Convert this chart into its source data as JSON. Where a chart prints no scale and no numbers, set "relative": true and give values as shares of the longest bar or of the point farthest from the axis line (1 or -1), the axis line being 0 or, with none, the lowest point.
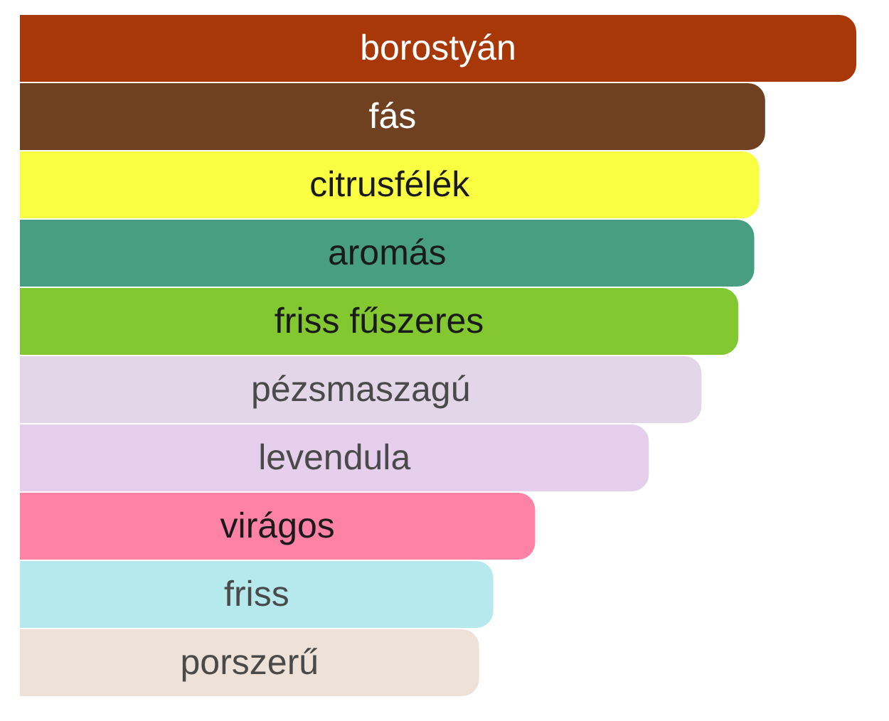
{
  "chart_data": {
    "type": "bar",
    "orientation": "horizontal",
    "relative": true,
    "legend": false,
    "categories": [
      "borostyán",
      "fás",
      "citrusfélék",
      "aromás",
      "friss fűszeres",
      "pézsmaszagú",
      "levendula",
      "virágos",
      "friss",
      "porszerű"
    ],
    "values": [
      1,
      0.891,
      0.884,
      0.878,
      0.859,
      0.815,
      0.752,
      0.616,
      0.566,
      0.549
    ],
    "colors": [
      "#a83808",
      "#6f4120",
      "#f9fe42",
      "#479e80",
      "#83c731",
      "#e3d6e8",
      "#e6cfec",
      "#fe82a6",
      "#b5e9ee",
      "#eee1d8"
    ]
  }
}
